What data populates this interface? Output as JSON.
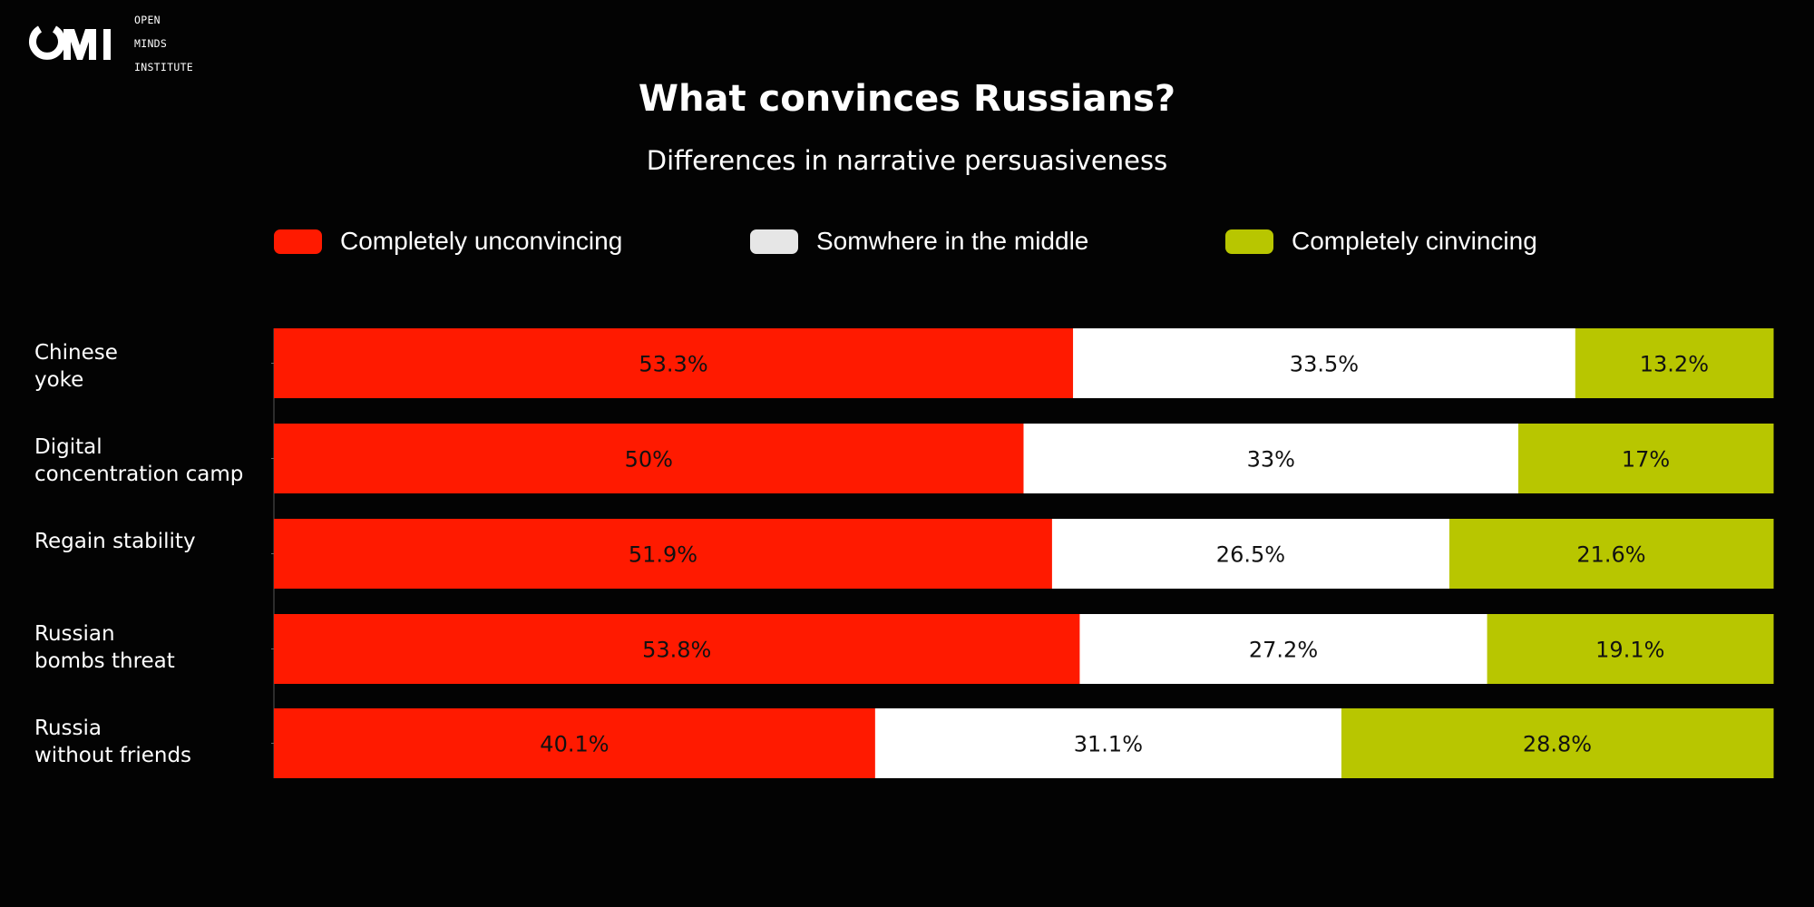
{
  "brand": {
    "logo_text": "OMI",
    "logo_caption": [
      "OPEN",
      "MINDS",
      "INSTITUTE"
    ]
  },
  "colors": {
    "background": "#030303",
    "unconvincing": "#ff1a00",
    "middle": "#ffffff",
    "convincing": "#b8c600",
    "legend_middle": "#e6e6e6"
  },
  "chart_data": {
    "type": "bar",
    "orientation": "horizontal-stacked-100",
    "title": "What convinces Russians?",
    "subtitle": "Differences in narrative persuasiveness",
    "legend_position": "top",
    "grid": false,
    "xlim": [
      0,
      100
    ],
    "categories": [
      [
        "Chinese",
        "yoke"
      ],
      [
        "Digital",
        "concentration camp"
      ],
      [
        "Regain stability"
      ],
      [
        "Russian",
        "bombs threat"
      ],
      [
        "Russia",
        "without friends"
      ]
    ],
    "series": [
      {
        "name": "Completely unconvincing",
        "color": "#ff1a00",
        "values": [
          53.3,
          50,
          51.9,
          53.8,
          40.1
        ],
        "labels": [
          "53.3%",
          "50%",
          "51.9%",
          "53.8%",
          "40.1%"
        ]
      },
      {
        "name": "Somwhere in the middle",
        "color": "#ffffff",
        "values": [
          33.5,
          33,
          26.5,
          27.2,
          31.1
        ],
        "labels": [
          "33.5%",
          "33%",
          "26.5%",
          "27.2%",
          "31.1%"
        ]
      },
      {
        "name": "Completely cinvincing",
        "color": "#b8c600",
        "values": [
          13.2,
          17,
          21.6,
          19.1,
          28.8
        ],
        "labels": [
          "13.2%",
          "17%",
          "21.6%",
          "19.1%",
          "28.8%"
        ]
      }
    ]
  }
}
